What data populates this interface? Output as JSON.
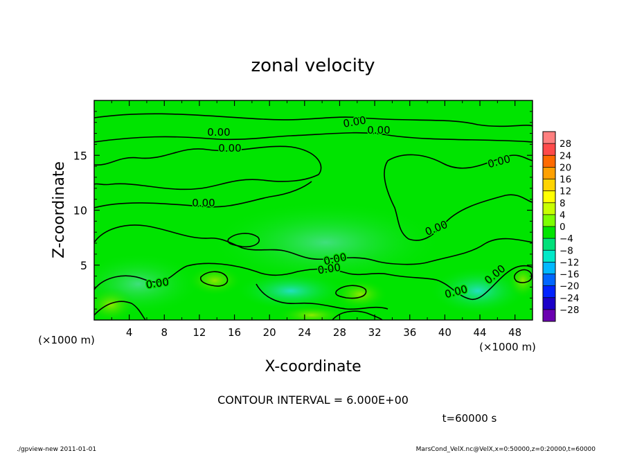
{
  "chart_data": {
    "type": "heatmap",
    "title": "zonal velocity",
    "xlabel": "X-coordinate",
    "ylabel": "Z-coordinate",
    "x_unit_left": "(×1000 m)",
    "x_unit_right": "(×1000 m)",
    "xlim": [
      0,
      50
    ],
    "ylim": [
      0,
      20
    ],
    "x_ticks": [
      4,
      8,
      12,
      16,
      20,
      24,
      28,
      32,
      36,
      40,
      44,
      48
    ],
    "y_ticks": [
      5,
      10,
      15
    ],
    "contour_labels": [
      "0.00",
      "0.00",
      "0.00",
      "0.00",
      "0.00",
      "0.00",
      "0.00",
      "0.00",
      "0.00",
      "0.00",
      "0.00",
      "0.00"
    ],
    "colorbar": {
      "levels": [
        28,
        24,
        20,
        16,
        12,
        8,
        4,
        0,
        -4,
        -8,
        -12,
        -16,
        -20,
        -24,
        -28
      ],
      "colors": [
        "#ff7f7f",
        "#ff4a4a",
        "#ff6a00",
        "#ffa000",
        "#ffd400",
        "#ffff00",
        "#c8ff00",
        "#7dff00",
        "#00e400",
        "#00e07a",
        "#00e8c8",
        "#00b8ff",
        "#0066ff",
        "#0022ff",
        "#1b00c8",
        "#6a00b0"
      ]
    },
    "contour_interval": "CONTOUR INTERVAL = 6.000E+00",
    "time_label": "t=60000 s"
  },
  "footer": {
    "left": "./gpview-new  2011-01-01",
    "right": "MarsCond_VelX.nc@VelX,x=0:50000,z=0:20000,t=60000"
  }
}
